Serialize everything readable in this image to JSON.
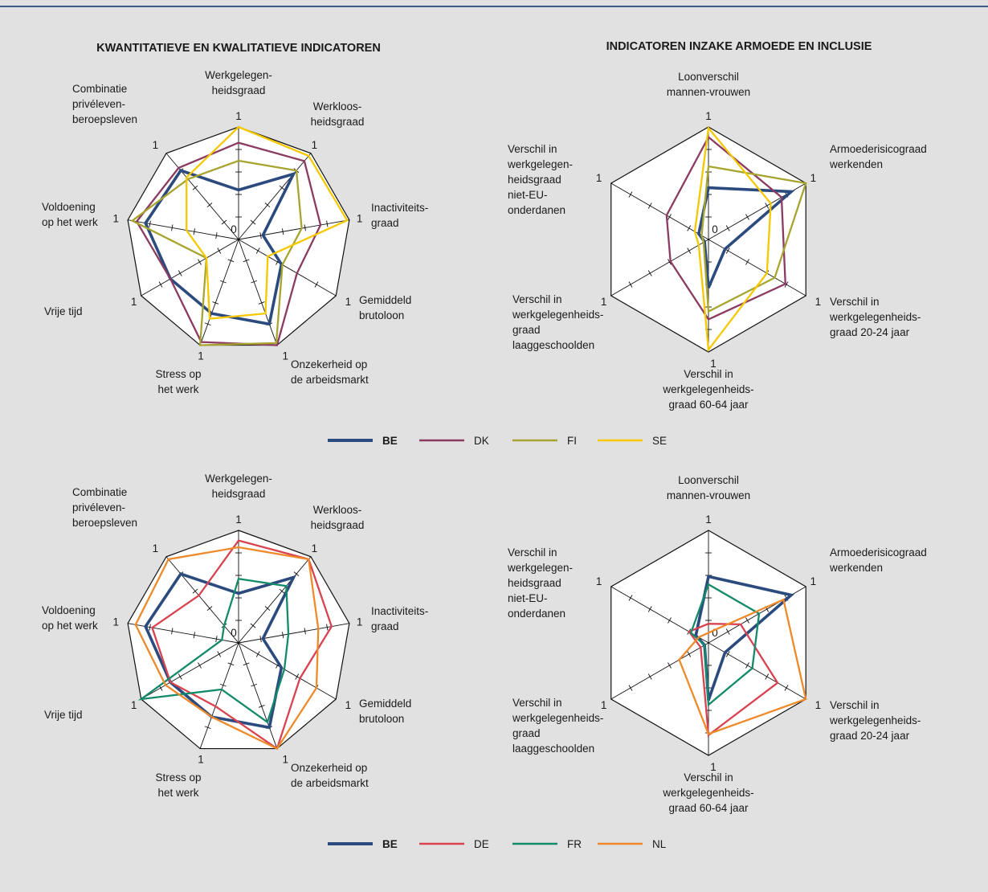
{
  "chart_data": [
    {
      "type": "radar",
      "title": "KWANTITATIEVE EN KWALITATIEVE INDICATOREN",
      "categories": [
        [
          "Werkgelegen-",
          "heidsgraad"
        ],
        [
          "Werkloos-",
          "heidsgraad"
        ],
        [
          "Inactiviteits-",
          "graad"
        ],
        [
          "Gemiddeld",
          "brutoloon"
        ],
        [
          "Onzekerheid op",
          "de arbeidsmarkt"
        ],
        [
          "Stress op",
          "het werk"
        ],
        [
          "Vrije tijd"
        ],
        [
          "Voldoening",
          "op het werk"
        ],
        [
          "Combinatie",
          "privéleven-",
          "beroepsleven"
        ]
      ],
      "rlim": [
        0,
        1
      ],
      "rticks": [
        0,
        1
      ],
      "minor_rticks": [
        0.2,
        0.4,
        0.6,
        0.8
      ],
      "series": [
        {
          "name": "BE",
          "color": "#2b4a7e",
          "values": [
            0.44,
            0.76,
            0.22,
            0.44,
            0.8,
            0.7,
            0.7,
            0.84,
            0.8
          ]
        },
        {
          "name": "DK",
          "color": "#8b3a62",
          "values": [
            0.86,
            0.91,
            0.74,
            0.6,
            1.0,
            0.97,
            0.7,
            0.92,
            0.83
          ]
        },
        {
          "name": "FI",
          "color": "#a7a530",
          "values": [
            0.7,
            0.8,
            0.57,
            0.45,
            0.98,
            1.0,
            0.33,
            0.96,
            0.7
          ]
        },
        {
          "name": "SE",
          "color": "#f5c800",
          "values": [
            1.0,
            0.97,
            0.98,
            0.3,
            0.7,
            0.75,
            0.33,
            0.47,
            0.72
          ]
        }
      ]
    },
    {
      "type": "radar",
      "title": "INDICATOREN INZAKE ARMOEDE EN INCLUSIE",
      "categories": [
        [
          "Loonverschil",
          "mannen-vrouwen"
        ],
        [
          "Armoederisicograad",
          "werkenden"
        ],
        [
          "Verschil in",
          "werkgelegenheids-",
          "graad 20-24 jaar"
        ],
        [
          "Verschil in",
          "werkgelegenheids-",
          "graad 60-64 jaar"
        ],
        [
          "Verschil in",
          "werkgelegenheids-",
          "graad",
          "laaggeschoolden"
        ],
        [
          "Verschil in",
          "werkgelegen-",
          "heidsgraad",
          "niet-EU-",
          "onderdanen"
        ]
      ],
      "rlim": [
        0,
        1
      ],
      "rticks": [
        0,
        1
      ],
      "minor_rticks": [
        0.2,
        0.4,
        0.6,
        0.8
      ],
      "series": [
        {
          "color": "#2b4a7e",
          "values": [
            0.46,
            0.85,
            0.17,
            0.43,
            0.04,
            0.1
          ]
        },
        {
          "color": "#8b3a62",
          "values": [
            0.91,
            0.75,
            0.79,
            0.71,
            0.39,
            0.43
          ]
        },
        {
          "color": "#a7a530",
          "values": [
            0.65,
            1.0,
            0.68,
            0.64,
            0.05,
            0.07
          ]
        },
        {
          "color": "#f5c800",
          "values": [
            0.99,
            0.64,
            0.6,
            0.98,
            0.1,
            0.14
          ]
        }
      ]
    },
    {
      "type": "radar",
      "categories": [
        [
          "Werkgelegen-",
          "heidsgraad"
        ],
        [
          "Werkloos-",
          "heidsgraad"
        ],
        [
          "Inactiviteits-",
          "graad"
        ],
        [
          "Gemiddeld",
          "brutoloon"
        ],
        [
          "Onzekerheid op",
          "de arbeidsmarkt"
        ],
        [
          "Stress op",
          "het werk"
        ],
        [
          "Vrije tijd"
        ],
        [
          "Voldoening",
          "op het werk"
        ],
        [
          "Combinatie",
          "privéleven-",
          "beroepsleven"
        ]
      ],
      "rlim": [
        0,
        1
      ],
      "rticks": [
        0,
        1
      ],
      "minor_rticks": [
        0.2,
        0.4,
        0.6,
        0.8
      ],
      "series": [
        {
          "name": "BE",
          "color": "#2b4a7e",
          "values": [
            0.44,
            0.76,
            0.22,
            0.44,
            0.8,
            0.7,
            0.7,
            0.84,
            0.8
          ]
        },
        {
          "name": "DE",
          "color": "#d9434f",
          "values": [
            0.91,
            0.97,
            0.84,
            0.63,
            1.0,
            0.6,
            0.7,
            0.78,
            0.55
          ]
        },
        {
          "name": "FR",
          "color": "#138a6a",
          "values": [
            0.57,
            0.66,
            0.45,
            0.47,
            0.75,
            0.44,
            1.0,
            0.15,
            0.2
          ]
        },
        {
          "name": "NL",
          "color": "#ee8a2a",
          "values": [
            0.85,
            0.97,
            0.72,
            0.8,
            1.0,
            0.7,
            0.75,
            0.93,
            0.97
          ]
        }
      ]
    },
    {
      "type": "radar",
      "categories": [
        [
          "Loonverschil",
          "mannen-vrouwen"
        ],
        [
          "Armoederisicograad",
          "werkenden"
        ],
        [
          "Verschil in",
          "werkgelegenheids-",
          "graad 20-24 jaar"
        ],
        [
          "Verschil in",
          "werkgelegenheids-",
          "graad 60-64 jaar"
        ],
        [
          "Verschil in",
          "werkgelegenheids-",
          "graad",
          "laaggeschoolden"
        ],
        [
          "Verschil in",
          "werkgelegen-",
          "heidsgraad",
          "niet-EU-",
          "onderdanen"
        ]
      ],
      "rlim": [
        0,
        1
      ],
      "rticks": [
        0,
        1
      ],
      "minor_rticks": [
        0.2,
        0.4,
        0.6,
        0.8
      ],
      "series": [
        {
          "color": "#2b4a7e",
          "values": [
            0.59,
            0.85,
            0.17,
            0.51,
            0.04,
            0.13
          ]
        },
        {
          "color": "#d9434f",
          "values": [
            0.17,
            0.33,
            0.71,
            0.82,
            0.08,
            0.2
          ]
        },
        {
          "color": "#138a6a",
          "values": [
            0.52,
            0.52,
            0.45,
            0.55,
            0.04,
            0.18
          ]
        },
        {
          "color": "#ee8a2a",
          "values": [
            0.09,
            0.77,
            1.0,
            0.81,
            0.3,
            0.1
          ]
        }
      ]
    }
  ]
}
